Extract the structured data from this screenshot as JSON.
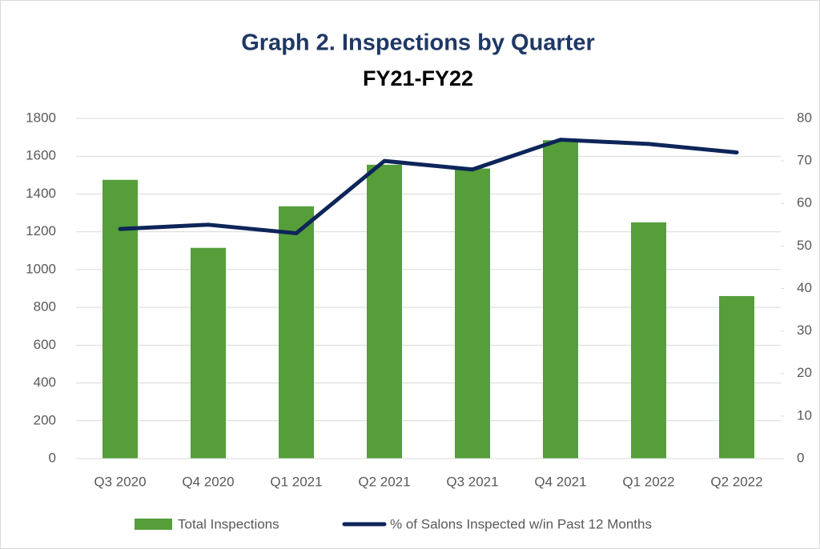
{
  "chart_data": {
    "type": "bar",
    "title": "Graph 2. Inspections by Quarter",
    "subtitle": "FY21-FY22",
    "categories": [
      "Q3 2020",
      "Q4 2020",
      "Q1 2021",
      "Q2 2021",
      "Q3 2021",
      "Q4 2021",
      "Q1 2022",
      "Q2 2022"
    ],
    "series": [
      {
        "name": "Total Inspections",
        "type": "bar",
        "color": "#559e3a",
        "values": [
          1475,
          1115,
          1335,
          1555,
          1535,
          1685,
          1250,
          860
        ]
      },
      {
        "name": "% of Salons Inspected w/in Past 12 Months",
        "type": "line",
        "axis": "y2",
        "color": "#0d2559",
        "values": [
          54,
          55,
          53,
          70,
          68,
          75,
          74,
          72
        ]
      }
    ],
    "ylim": [
      0,
      1800
    ],
    "yticks": [
      0,
      200,
      400,
      600,
      800,
      1000,
      1200,
      1400,
      1600,
      1800
    ],
    "y2lim": [
      0,
      80
    ],
    "y2ticks": [
      0,
      10,
      20,
      30,
      40,
      50,
      60,
      70,
      80
    ],
    "grid": true,
    "legend": "bottom"
  }
}
